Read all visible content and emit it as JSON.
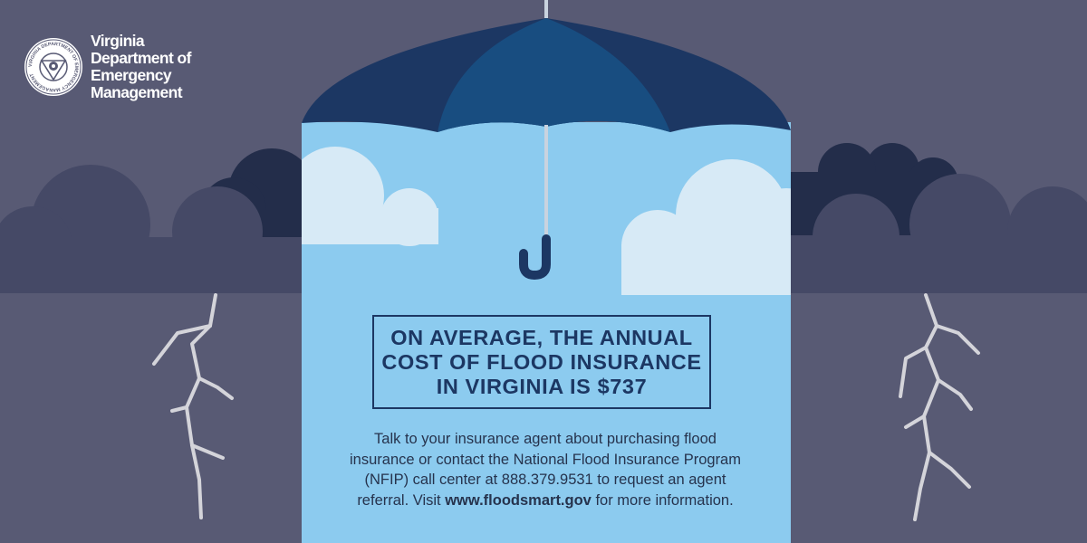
{
  "agency": {
    "name_lines": [
      "Virginia",
      "Department of",
      "Emergency",
      "Management"
    ],
    "seal_text": "VIRGINIA DEPARTMENT OF EMERGENCY MANAGEMENT"
  },
  "headline": {
    "lines": [
      "ON AVERAGE, THE ANNUAL",
      "COST OF FLOOD INSURANCE",
      "IN VIRGINIA IS $737"
    ]
  },
  "body": {
    "line1": "Talk to your insurance agent about purchasing flood",
    "line2": "insurance or contact the National Flood Insurance Program",
    "line3": "(NFIP) call center at 888.379.9531 to request an agent",
    "line4_before": "referral. Visit ",
    "link": "www.floodsmart.gov",
    "line4_after": " for more information."
  },
  "colors": {
    "storm_background": "#585a74",
    "umbrella_sky": "#8ccbef",
    "umbrella_canopy_dark": "#1c3763",
    "umbrella_canopy_light": "#184d80",
    "text_navy": "#1c3763",
    "light_cloud": "#d7eaf6",
    "storm_cloud_dark": "#232d4a",
    "storm_cloud_mid": "#454966",
    "lightning": "#d4d4da"
  },
  "icons": {
    "seal": "vdem-seal-icon",
    "umbrella": "umbrella-icon",
    "lightning": "lightning-bolt-icon",
    "cloud": "cloud-icon"
  }
}
